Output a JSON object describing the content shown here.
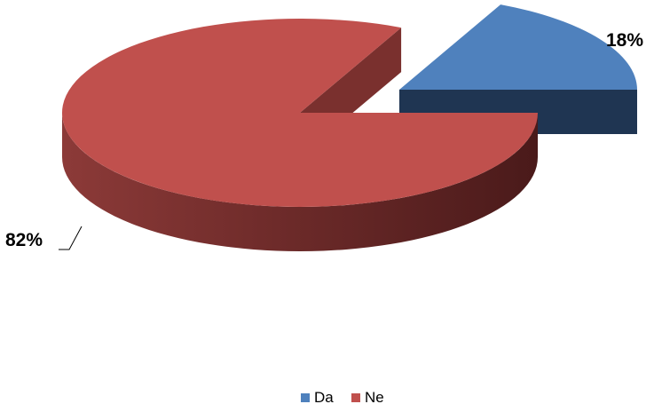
{
  "chart_data": {
    "type": "pie",
    "style": "3d-exploded",
    "categories": [
      "Da",
      "Ne"
    ],
    "values": [
      18,
      82
    ],
    "unit": "%",
    "data_labels": [
      "18%",
      "82%"
    ],
    "colors": [
      "#4f81bd",
      "#c0504d"
    ],
    "side_colors": [
      "#1f3552",
      "#5a1f1f"
    ],
    "legend": {
      "position": "bottom",
      "entries": [
        "Da",
        "Ne"
      ]
    }
  }
}
